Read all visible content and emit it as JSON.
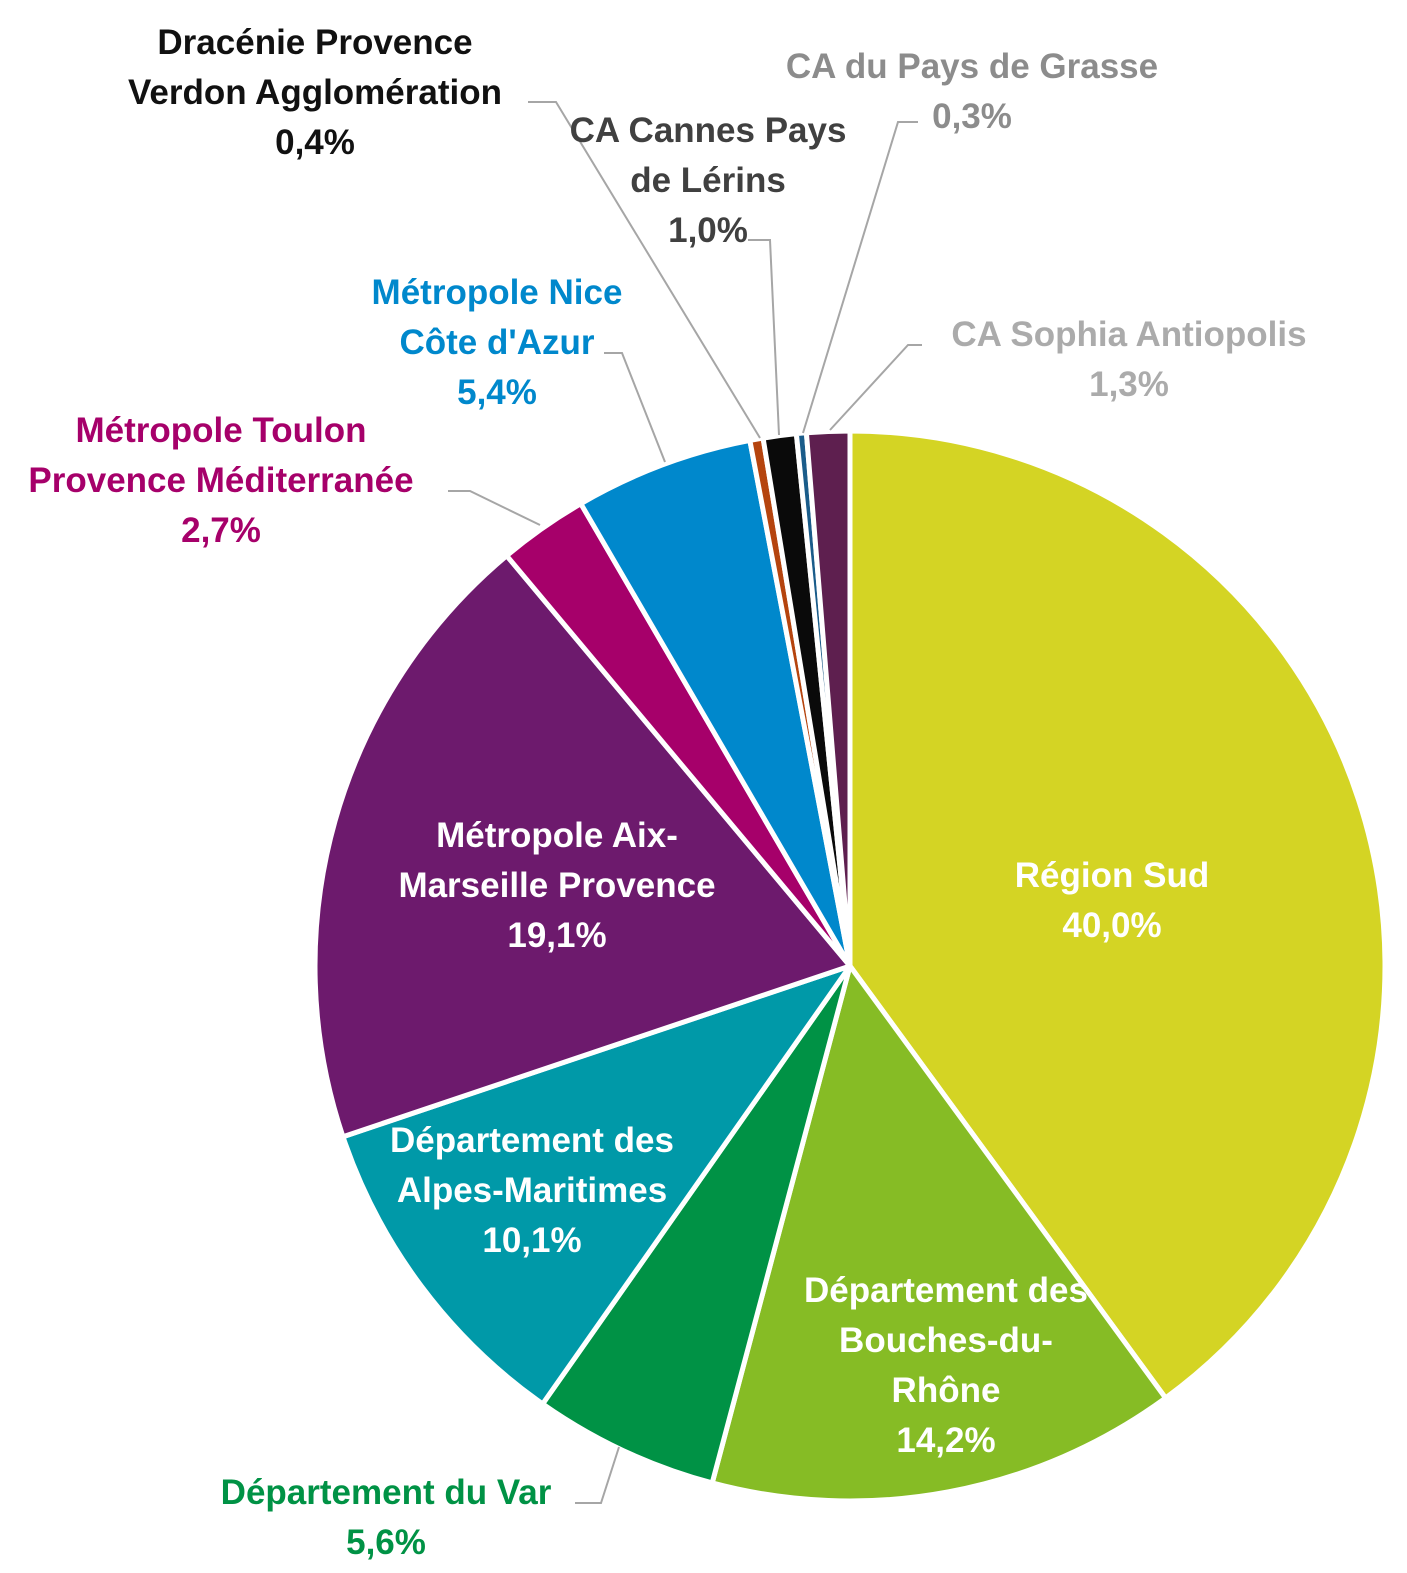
{
  "chart_data": {
    "type": "pie",
    "title": "",
    "start_angle_deg": 0,
    "direction": "clockwise",
    "slices": [
      {
        "name": "Région Sud",
        "value": 40.0,
        "value_label": "40,0%",
        "label_lines": [
          "Région Sud"
        ],
        "color": "#d4d424",
        "label_color": "#ffffff",
        "label_position": "inside"
      },
      {
        "name": "Département des Bouches-du-Rhône",
        "value": 14.2,
        "value_label": "14,2%",
        "label_lines": [
          "Département des",
          "Bouches-du-",
          "Rhône"
        ],
        "color": "#86bc25",
        "label_color": "#ffffff",
        "label_position": "inside"
      },
      {
        "name": "Département du Var",
        "value": 5.6,
        "value_label": "5,6%",
        "label_lines": [
          "Département du Var"
        ],
        "color": "#009245",
        "label_color": "#009245",
        "label_position": "outside"
      },
      {
        "name": "Département des Alpes-Maritimes",
        "value": 10.1,
        "value_label": "10,1%",
        "label_lines": [
          "Département des",
          "Alpes-Maritimes"
        ],
        "color": "#0099a8",
        "label_color": "#ffffff",
        "label_position": "inside"
      },
      {
        "name": "Métropole Aix-Marseille Provence",
        "value": 19.1,
        "value_label": "19,1%",
        "label_lines": [
          "Métropole Aix-",
          "Marseille Provence"
        ],
        "color": "#6d1a6d",
        "label_color": "#ffffff",
        "label_position": "inside"
      },
      {
        "name": "Métropole Toulon Provence Méditerranée",
        "value": 2.7,
        "value_label": "2,7%",
        "label_lines": [
          "Métropole Toulon",
          "Provence Méditerranée"
        ],
        "color": "#a6006a",
        "label_color": "#a6006a",
        "label_position": "outside"
      },
      {
        "name": "Métropole Nice Côte d'Azur",
        "value": 5.4,
        "value_label": "5,4%",
        "label_lines": [
          "Métropole Nice",
          "Côte d'Azur"
        ],
        "color": "#0088cc",
        "label_color": "#0088cc",
        "label_position": "outside"
      },
      {
        "name": "Dracénie Provence Verdon Agglomération",
        "value": 0.4,
        "value_label": "0,4%",
        "label_lines": [
          "Dracénie Provence",
          "Verdon Agglomération"
        ],
        "color": "#b5440e",
        "label_color": "#111111",
        "label_position": "outside"
      },
      {
        "name": "CA Cannes Pays de Lérins",
        "value": 1.0,
        "value_label": "1,0%",
        "label_lines": [
          "CA Cannes Pays",
          "de Lérins"
        ],
        "color": "#0a0a0a",
        "label_color": "#404040",
        "label_position": "outside"
      },
      {
        "name": "CA du Pays de Grasse",
        "value": 0.3,
        "value_label": "0,3%",
        "label_lines": [
          "CA du Pays de Grasse"
        ],
        "color": "#1a5c8a",
        "label_color": "#8c8c8c",
        "label_position": "outside"
      },
      {
        "name": "CA Sophia Antiopolis",
        "value": 1.3,
        "value_label": "1,3%",
        "label_lines": [
          "CA Sophia Antiopolis"
        ],
        "color": "#5e1f4f",
        "label_color": "#ababab",
        "label_position": "outside"
      }
    ]
  }
}
